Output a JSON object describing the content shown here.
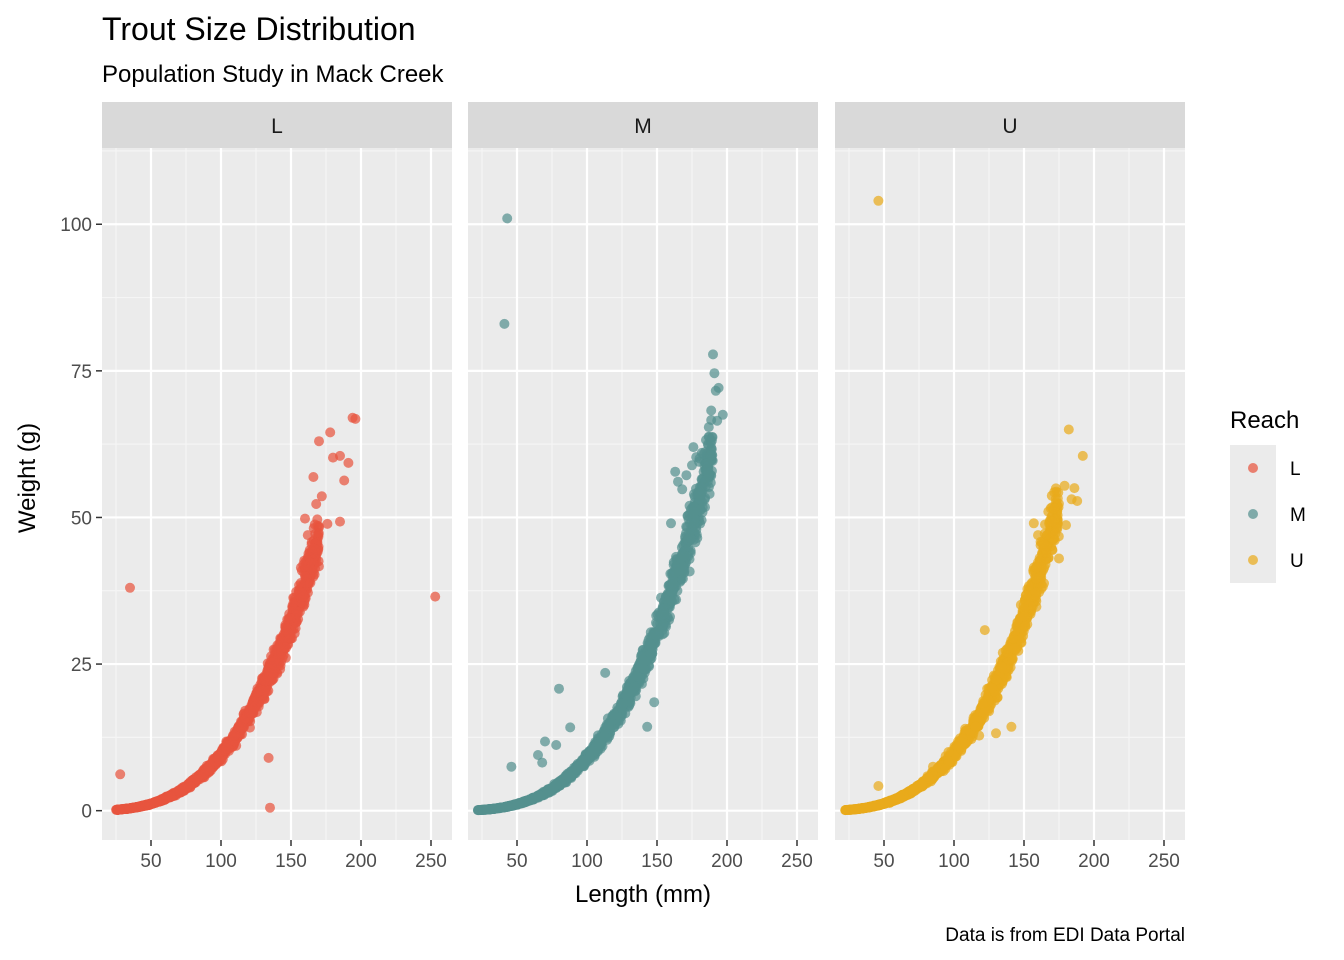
{
  "chart_data": {
    "type": "scatter",
    "title": "Trout Size Distribution",
    "subtitle": "Population Study in Mack Creek",
    "xlabel": "Length (mm)",
    "ylabel": "Weight (g)",
    "caption": "Data is from EDI Data Portal",
    "xlim": [
      15,
      265
    ],
    "ylim": [
      -5,
      113
    ],
    "x_ticks": [
      50,
      100,
      150,
      200,
      250
    ],
    "y_ticks": [
      0,
      25,
      50,
      75,
      100
    ],
    "grid": true,
    "legend": {
      "title": "Reach",
      "position": "right"
    },
    "facets": [
      "L",
      "M",
      "U"
    ],
    "series": [
      {
        "name": "L",
        "color": "#E8553F",
        "curve": {
          "x_min": 25,
          "x_max": 170,
          "weight_at_100mm": 9.5,
          "exponent": 3.0
        },
        "points": [
          [
            35,
            38
          ],
          [
            28,
            6.2
          ],
          [
            253,
            36.5
          ],
          [
            134,
            9
          ],
          [
            135,
            0.5
          ],
          [
            170,
            63
          ],
          [
            178,
            64.5
          ],
          [
            180,
            60.2
          ],
          [
            185,
            60.5
          ],
          [
            188,
            56.3
          ],
          [
            191,
            59.3
          ],
          [
            194,
            67
          ],
          [
            196,
            66.8
          ],
          [
            185,
            49.3
          ],
          [
            176,
            48.9
          ],
          [
            166,
            56.9
          ],
          [
            172,
            53.6
          ],
          [
            168,
            52.3
          ],
          [
            160,
            49.8
          ],
          [
            167,
            48.8
          ],
          [
            162,
            47
          ],
          [
            168,
            44.5
          ],
          [
            160,
            40
          ]
        ]
      },
      {
        "name": "M",
        "color": "#54908F",
        "curve": {
          "x_min": 22,
          "x_max": 190,
          "weight_at_100mm": 9.0,
          "exponent": 3.02
        },
        "points": [
          [
            43,
            101
          ],
          [
            41,
            83
          ],
          [
            190,
            77.8
          ],
          [
            191,
            74.6
          ],
          [
            192,
            71.6
          ],
          [
            194,
            72.1
          ],
          [
            197,
            67.5
          ],
          [
            193,
            66.5
          ],
          [
            187,
            65.4
          ],
          [
            185,
            63.2
          ],
          [
            182,
            61
          ],
          [
            178,
            60.3
          ],
          [
            176,
            62
          ],
          [
            180,
            59.5
          ],
          [
            175,
            58.9
          ],
          [
            171,
            57.2
          ],
          [
            163,
            57.8
          ],
          [
            165,
            56.1
          ],
          [
            168,
            54.8
          ],
          [
            160,
            49
          ],
          [
            80,
            20.8
          ],
          [
            113,
            23.5
          ],
          [
            70,
            11.8
          ],
          [
            78,
            11.2
          ],
          [
            65,
            9.5
          ],
          [
            46,
            7.5
          ],
          [
            68,
            8.2
          ],
          [
            88,
            14.2
          ],
          [
            143,
            14.3
          ],
          [
            148,
            18.5
          ],
          [
            155,
            33.5
          ]
        ]
      },
      {
        "name": "U",
        "color": "#E9AA1C",
        "curve": {
          "x_min": 22,
          "x_max": 175,
          "weight_at_100mm": 9.8,
          "exponent": 3.0
        },
        "points": [
          [
            46,
            104
          ],
          [
            46,
            4.2
          ],
          [
            182,
            65
          ],
          [
            192,
            60.5
          ],
          [
            179,
            55.4
          ],
          [
            186,
            55
          ],
          [
            184,
            53.1
          ],
          [
            188,
            52.8
          ],
          [
            170,
            49.3
          ],
          [
            180,
            48.7
          ],
          [
            165,
            48.8
          ],
          [
            172,
            46.1
          ],
          [
            175,
            43
          ],
          [
            157,
            49
          ],
          [
            160,
            47
          ],
          [
            122,
            30.8
          ],
          [
            141,
            14.3
          ],
          [
            130,
            13.2
          ],
          [
            118,
            12.8
          ],
          [
            108,
            11.4
          ],
          [
            85,
            7.5
          ],
          [
            96,
            10
          ]
        ]
      }
    ]
  }
}
